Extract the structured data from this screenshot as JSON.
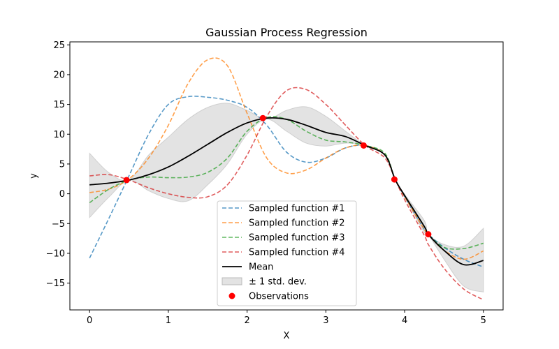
{
  "chart_data": {
    "type": "line",
    "title": "Gaussian Process Regression",
    "xlabel": "X",
    "ylabel": "y",
    "xlim": [
      -0.25,
      5.25
    ],
    "ylim": [
      -19.5,
      25.5
    ],
    "xticks": [
      0,
      1,
      2,
      3,
      4,
      5
    ],
    "xtick_labels": [
      "0",
      "1",
      "2",
      "3",
      "4",
      "5"
    ],
    "yticks": [
      -15,
      -10,
      -5,
      0,
      5,
      10,
      15,
      20,
      25
    ],
    "ytick_labels": [
      "−15",
      "−10",
      "−5",
      "0",
      "5",
      "10",
      "15",
      "20",
      "25"
    ],
    "grid": false,
    "legend_position": "bottom-center",
    "x": [
      0,
      0.25,
      0.5,
      0.75,
      1.0,
      1.25,
      1.5,
      1.75,
      2.0,
      2.25,
      2.5,
      2.75,
      3.0,
      3.25,
      3.5,
      3.75,
      3.88,
      4.0,
      4.25,
      4.3,
      4.5,
      4.75,
      5.0
    ],
    "series": [
      {
        "name": "Sampled function #1",
        "color": "#1f77b4",
        "style": "dashed",
        "values": [
          -10.8,
          -4.0,
          3.0,
          10.0,
          15.0,
          16.3,
          16.2,
          15.7,
          14.5,
          11.5,
          7.0,
          5.3,
          6.0,
          7.7,
          8.1,
          6.5,
          2.4,
          -0.5,
          -6.0,
          -6.8,
          -9.0,
          -11.0,
          -12.3
        ]
      },
      {
        "name": "Sampled function #2",
        "color": "#ff7f0e",
        "style": "dashed",
        "values": [
          0.2,
          0.8,
          2.5,
          6.0,
          11.5,
          18.5,
          22.5,
          21.5,
          13.5,
          6.0,
          3.5,
          4.0,
          6.0,
          7.7,
          8.1,
          6.5,
          2.4,
          -0.5,
          -6.0,
          -6.8,
          -9.5,
          -11.0,
          -9.6
        ]
      },
      {
        "name": "Sampled function #3",
        "color": "#2ca02c",
        "style": "dashed",
        "values": [
          -1.5,
          0.8,
          2.3,
          2.8,
          2.7,
          2.8,
          3.6,
          6.0,
          10.5,
          12.8,
          12.5,
          10.5,
          9.0,
          8.7,
          8.1,
          6.8,
          2.4,
          -0.3,
          -5.5,
          -6.8,
          -9.0,
          -9.2,
          -8.3
        ]
      },
      {
        "name": "Sampled function #4",
        "color": "#d62728",
        "style": "dashed",
        "values": [
          3.0,
          3.2,
          2.3,
          1.0,
          0.0,
          -0.6,
          -0.5,
          1.5,
          6.5,
          13.0,
          17.3,
          17.5,
          15.0,
          11.5,
          8.1,
          6.0,
          2.4,
          -1.0,
          -7.0,
          -8.5,
          -12.5,
          -16.0,
          -17.8
        ]
      }
    ],
    "mean": {
      "name": "Mean",
      "color": "#000000",
      "values": [
        1.5,
        1.8,
        2.3,
        3.2,
        4.5,
        6.3,
        8.3,
        10.3,
        11.9,
        12.7,
        12.5,
        11.5,
        10.3,
        9.6,
        8.1,
        6.5,
        2.4,
        -0.3,
        -5.5,
        -6.8,
        -9.5,
        -11.9,
        -11.2
      ]
    },
    "std_band": {
      "name": "± 1 std. dev.",
      "color": "#cccccc",
      "lower": [
        -4.0,
        -0.5,
        2.3,
        0.5,
        -0.8,
        -1.2,
        1.5,
        5.0,
        10.0,
        12.5,
        10.5,
        8.5,
        8.0,
        8.5,
        8.1,
        6.5,
        2.4,
        -0.5,
        -6.5,
        -6.8,
        -11.0,
        -15.5,
        -16.5
      ],
      "upper": [
        6.8,
        3.5,
        2.3,
        6.5,
        9.5,
        12.5,
        14.5,
        15.2,
        14.0,
        12.5,
        14.0,
        14.6,
        13.0,
        10.5,
        8.1,
        6.5,
        2.4,
        -0.1,
        -4.5,
        -6.8,
        -8.5,
        -8.8,
        -5.8
      ]
    },
    "observations": {
      "name": "Observations",
      "color": "#ff0000",
      "x": [
        0.47,
        2.2,
        3.48,
        3.87,
        4.3
      ],
      "y": [
        2.3,
        12.7,
        8.1,
        2.4,
        -6.8
      ]
    }
  }
}
